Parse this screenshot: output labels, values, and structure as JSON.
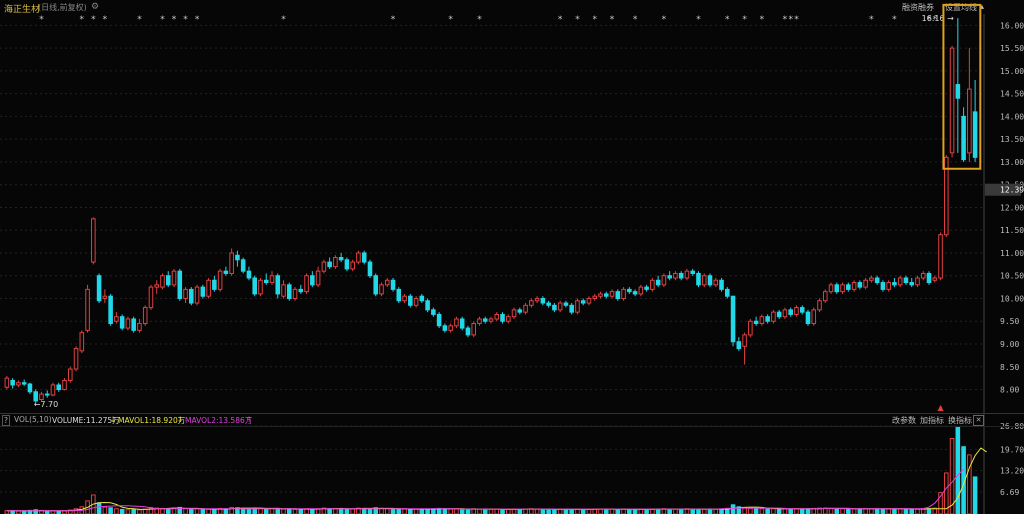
{
  "header": {
    "stock_name": "海正生材",
    "period": "(日线,前复权)",
    "gear": "⚙",
    "margin_btn": "融资融券",
    "ma_btn": "设置均线"
  },
  "vol_header": {
    "indicator": "VOL(5,10)",
    "volume": "VOLUME:11.275万",
    "mavol1": "MAVOL1:18.920万",
    "mavol2": "MAVOL2:13.586万",
    "btn1": "改参数",
    "btn2": "加指标",
    "btn3": "换指标",
    "close": "✕",
    "help": "?"
  },
  "colors": {
    "up": "#e04040",
    "down": "#20d8e8",
    "mavol1": "#e8e840",
    "mavol2": "#e040e0",
    "highlight": "#e0a020",
    "price_tag_bg": "#3a3a3a"
  },
  "chart_data": {
    "type": "candlestick",
    "price_axis": {
      "min": 7.55,
      "max": 16.25,
      "ticks": [
        "8.00",
        "8.50",
        "9.00",
        "9.50",
        "10.00",
        "10.50",
        "11.00",
        "11.50",
        "12.00",
        "12.50",
        "13.00",
        "13.50",
        "14.00",
        "14.50",
        "15.00",
        "15.50",
        "16.00"
      ]
    },
    "current_price": "12.39",
    "low_label": "7.70",
    "high_label": "16.16",
    "volume_axis": {
      "max": 26.8,
      "ticks": [
        "26.80",
        "19.70",
        "13.20",
        "6.69"
      ]
    },
    "candles": [
      [
        8.05,
        8.25,
        8.3,
        8.0
      ],
      [
        8.2,
        8.1,
        8.25,
        8.02
      ],
      [
        8.1,
        8.15,
        8.2,
        8.05
      ],
      [
        8.15,
        8.12,
        8.22,
        8.08
      ],
      [
        8.12,
        7.95,
        8.15,
        7.9
      ],
      [
        7.95,
        7.75,
        8.0,
        7.7
      ],
      [
        7.78,
        7.9,
        7.95,
        7.75
      ],
      [
        7.9,
        7.88,
        7.98,
        7.82
      ],
      [
        7.88,
        8.1,
        8.15,
        7.85
      ],
      [
        8.1,
        8.0,
        8.15,
        7.95
      ],
      [
        8.0,
        8.2,
        8.25,
        7.98
      ],
      [
        8.2,
        8.45,
        8.5,
        8.15
      ],
      [
        8.45,
        8.9,
        8.95,
        8.4
      ],
      [
        8.85,
        9.25,
        9.3,
        8.8
      ],
      [
        9.3,
        10.2,
        10.3,
        9.25
      ],
      [
        10.8,
        11.75,
        11.78,
        10.75
      ],
      [
        10.5,
        9.95,
        10.55,
        9.9
      ],
      [
        10.0,
        10.05,
        10.2,
        9.9
      ],
      [
        10.05,
        9.45,
        10.1,
        9.4
      ],
      [
        9.5,
        9.6,
        9.7,
        9.45
      ],
      [
        9.6,
        9.35,
        9.65,
        9.3
      ],
      [
        9.35,
        9.55,
        9.6,
        9.3
      ],
      [
        9.55,
        9.3,
        9.6,
        9.25
      ],
      [
        9.3,
        9.45,
        9.55,
        9.25
      ],
      [
        9.45,
        9.8,
        9.85,
        9.4
      ],
      [
        9.8,
        10.25,
        10.3,
        9.75
      ],
      [
        10.25,
        10.3,
        10.4,
        10.1
      ],
      [
        10.25,
        10.5,
        10.55,
        10.2
      ],
      [
        10.5,
        10.3,
        10.6,
        10.25
      ],
      [
        10.3,
        10.6,
        10.65,
        10.25
      ],
      [
        10.6,
        10.0,
        10.65,
        9.95
      ],
      [
        10.0,
        10.2,
        10.25,
        9.9
      ],
      [
        10.2,
        9.9,
        10.25,
        9.85
      ],
      [
        9.9,
        10.25,
        10.3,
        9.85
      ],
      [
        10.25,
        10.05,
        10.3,
        10.0
      ],
      [
        10.05,
        10.4,
        10.45,
        10.0
      ],
      [
        10.4,
        10.2,
        10.5,
        10.15
      ],
      [
        10.2,
        10.6,
        10.65,
        10.15
      ],
      [
        10.6,
        10.55,
        10.7,
        10.5
      ],
      [
        10.55,
        11.0,
        11.1,
        10.5
      ],
      [
        10.95,
        10.85,
        11.05,
        10.7
      ],
      [
        10.85,
        10.6,
        10.9,
        10.55
      ],
      [
        10.6,
        10.45,
        10.7,
        10.4
      ],
      [
        10.45,
        10.1,
        10.5,
        10.05
      ],
      [
        10.1,
        10.4,
        10.45,
        10.05
      ],
      [
        10.4,
        10.35,
        10.55,
        10.3
      ],
      [
        10.35,
        10.5,
        10.6,
        10.3
      ],
      [
        10.5,
        10.1,
        10.55,
        10.0
      ],
      [
        10.05,
        10.3,
        10.4,
        10.0
      ],
      [
        10.3,
        10.0,
        10.35,
        9.95
      ],
      [
        10.0,
        10.2,
        10.25,
        9.95
      ],
      [
        10.2,
        10.15,
        10.3,
        10.1
      ],
      [
        10.15,
        10.5,
        10.55,
        10.1
      ],
      [
        10.5,
        10.3,
        10.6,
        10.25
      ],
      [
        10.3,
        10.6,
        10.7,
        10.25
      ],
      [
        10.6,
        10.8,
        10.85,
        10.55
      ],
      [
        10.8,
        10.7,
        10.9,
        10.65
      ],
      [
        10.7,
        10.9,
        10.95,
        10.65
      ],
      [
        10.9,
        10.85,
        11.0,
        10.8
      ],
      [
        10.85,
        10.65,
        10.9,
        10.6
      ],
      [
        10.65,
        10.8,
        10.85,
        10.6
      ],
      [
        10.8,
        11.0,
        11.05,
        10.75
      ],
      [
        11.0,
        10.8,
        11.05,
        10.75
      ],
      [
        10.8,
        10.5,
        10.85,
        10.45
      ],
      [
        10.5,
        10.1,
        10.55,
        10.05
      ],
      [
        10.1,
        10.3,
        10.35,
        10.05
      ],
      [
        10.3,
        10.4,
        10.45,
        10.25
      ],
      [
        10.4,
        10.2,
        10.45,
        10.15
      ],
      [
        10.2,
        9.95,
        10.25,
        9.9
      ],
      [
        9.95,
        10.05,
        10.1,
        9.9
      ],
      [
        10.05,
        9.85,
        10.1,
        9.8
      ],
      [
        9.85,
        10.0,
        10.05,
        9.8
      ],
      [
        10.05,
        9.95,
        10.1,
        9.9
      ],
      [
        9.95,
        9.75,
        10.0,
        9.7
      ],
      [
        9.75,
        9.65,
        9.8,
        9.6
      ],
      [
        9.65,
        9.4,
        9.7,
        9.35
      ],
      [
        9.4,
        9.3,
        9.45,
        9.25
      ],
      [
        9.3,
        9.4,
        9.45,
        9.25
      ],
      [
        9.4,
        9.55,
        9.6,
        9.35
      ],
      [
        9.55,
        9.35,
        9.6,
        9.3
      ],
      [
        9.35,
        9.2,
        9.4,
        9.15
      ],
      [
        9.2,
        9.45,
        9.5,
        9.15
      ],
      [
        9.45,
        9.55,
        9.6,
        9.4
      ],
      [
        9.55,
        9.5,
        9.6,
        9.45
      ],
      [
        9.5,
        9.55,
        9.6,
        9.45
      ],
      [
        9.55,
        9.65,
        9.7,
        9.5
      ],
      [
        9.65,
        9.5,
        9.7,
        9.45
      ],
      [
        9.5,
        9.6,
        9.65,
        9.45
      ],
      [
        9.6,
        9.75,
        9.8,
        9.55
      ],
      [
        9.75,
        9.7,
        9.8,
        9.65
      ],
      [
        9.7,
        9.85,
        9.9,
        9.65
      ],
      [
        9.85,
        9.95,
        10.0,
        9.8
      ],
      [
        9.95,
        10.0,
        10.05,
        9.9
      ],
      [
        10.0,
        9.9,
        10.05,
        9.85
      ],
      [
        9.9,
        9.85,
        9.95,
        9.8
      ],
      [
        9.85,
        9.75,
        9.9,
        9.7
      ],
      [
        9.75,
        9.9,
        9.95,
        9.7
      ],
      [
        9.9,
        9.85,
        9.95,
        9.8
      ],
      [
        9.85,
        9.7,
        9.9,
        9.65
      ],
      [
        9.7,
        9.95,
        10.0,
        9.65
      ],
      [
        9.95,
        9.9,
        10.0,
        9.85
      ],
      [
        9.9,
        10.0,
        10.05,
        9.85
      ],
      [
        10.0,
        10.05,
        10.1,
        9.95
      ],
      [
        10.05,
        10.1,
        10.15,
        10.0
      ],
      [
        10.1,
        10.05,
        10.15,
        10.0
      ],
      [
        10.05,
        10.15,
        10.2,
        10.0
      ],
      [
        10.15,
        10.0,
        10.2,
        9.95
      ],
      [
        10.0,
        10.2,
        10.25,
        9.95
      ],
      [
        10.2,
        10.15,
        10.25,
        10.1
      ],
      [
        10.15,
        10.1,
        10.2,
        10.05
      ],
      [
        10.1,
        10.25,
        10.3,
        10.05
      ],
      [
        10.25,
        10.2,
        10.3,
        10.15
      ],
      [
        10.2,
        10.4,
        10.45,
        10.15
      ],
      [
        10.4,
        10.3,
        10.5,
        10.25
      ],
      [
        10.3,
        10.5,
        10.55,
        10.25
      ],
      [
        10.5,
        10.45,
        10.6,
        10.4
      ],
      [
        10.45,
        10.55,
        10.6,
        10.4
      ],
      [
        10.55,
        10.45,
        10.6,
        10.4
      ],
      [
        10.45,
        10.6,
        10.65,
        10.4
      ],
      [
        10.6,
        10.55,
        10.65,
        10.5
      ],
      [
        10.55,
        10.3,
        10.6,
        10.25
      ],
      [
        10.3,
        10.5,
        10.55,
        10.25
      ],
      [
        10.5,
        10.3,
        10.55,
        10.25
      ],
      [
        10.3,
        10.4,
        10.45,
        10.25
      ],
      [
        10.4,
        10.2,
        10.45,
        10.15
      ],
      [
        10.2,
        10.05,
        10.25,
        10.0
      ],
      [
        10.05,
        9.05,
        10.05,
        8.95
      ],
      [
        9.05,
        8.9,
        9.15,
        8.85
      ],
      [
        8.95,
        9.2,
        9.25,
        8.55
      ],
      [
        9.2,
        9.5,
        9.55,
        9.15
      ],
      [
        9.5,
        9.45,
        9.6,
        9.4
      ],
      [
        9.45,
        9.6,
        9.65,
        9.4
      ],
      [
        9.6,
        9.5,
        9.65,
        9.45
      ],
      [
        9.5,
        9.7,
        9.75,
        9.45
      ],
      [
        9.7,
        9.6,
        9.75,
        9.55
      ],
      [
        9.6,
        9.75,
        9.8,
        9.55
      ],
      [
        9.75,
        9.65,
        9.8,
        9.6
      ],
      [
        9.65,
        9.8,
        9.85,
        9.6
      ],
      [
        9.8,
        9.7,
        9.85,
        9.65
      ],
      [
        9.7,
        9.45,
        9.75,
        9.4
      ],
      [
        9.45,
        9.75,
        9.8,
        9.4
      ],
      [
        9.75,
        9.95,
        10.0,
        9.7
      ],
      [
        9.95,
        10.15,
        10.2,
        9.9
      ],
      [
        10.15,
        10.3,
        10.35,
        10.1
      ],
      [
        10.3,
        10.15,
        10.35,
        10.1
      ],
      [
        10.15,
        10.3,
        10.35,
        10.1
      ],
      [
        10.3,
        10.2,
        10.35,
        10.15
      ],
      [
        10.2,
        10.35,
        10.4,
        10.15
      ],
      [
        10.35,
        10.25,
        10.4,
        10.2
      ],
      [
        10.25,
        10.4,
        10.45,
        10.2
      ],
      [
        10.4,
        10.45,
        10.5,
        10.35
      ],
      [
        10.45,
        10.35,
        10.5,
        10.3
      ],
      [
        10.35,
        10.2,
        10.4,
        10.15
      ],
      [
        10.2,
        10.35,
        10.4,
        10.15
      ],
      [
        10.35,
        10.3,
        10.45,
        10.25
      ],
      [
        10.3,
        10.45,
        10.5,
        10.25
      ],
      [
        10.45,
        10.35,
        10.5,
        10.3
      ],
      [
        10.35,
        10.3,
        10.45,
        10.25
      ],
      [
        10.3,
        10.45,
        10.5,
        10.25
      ],
      [
        10.45,
        10.55,
        10.6,
        10.4
      ],
      [
        10.55,
        10.35,
        10.6,
        10.3
      ],
      [
        10.4,
        10.45,
        10.5,
        10.35
      ],
      [
        10.45,
        11.4,
        11.45,
        10.4
      ],
      [
        11.4,
        13.1,
        13.15,
        11.35
      ],
      [
        13.2,
        15.5,
        15.55,
        13.1
      ],
      [
        14.7,
        14.4,
        16.16,
        13.2
      ],
      [
        14.0,
        13.05,
        14.2,
        13.0
      ],
      [
        13.2,
        14.6,
        15.5,
        13.0
      ],
      [
        14.1,
        13.1,
        14.8,
        13.0
      ]
    ],
    "volumes": [
      1,
      1,
      0.9,
      0.9,
      1.1,
      1.3,
      1.1,
      0.9,
      1,
      0.9,
      1,
      1.2,
      1.6,
      2.2,
      4.0,
      5.8,
      3.4,
      2.1,
      1.9,
      1.6,
      1.4,
      1.3,
      1.5,
      1.3,
      1.5,
      2.0,
      1.8,
      1.7,
      1.6,
      1.8,
      2.0,
      1.6,
      1.5,
      1.6,
      1.4,
      1.5,
      1.4,
      1.7,
      1.6,
      2.0,
      1.9,
      1.7,
      1.6,
      1.8,
      1.7,
      1.5,
      1.6,
      1.7,
      1.5,
      1.6,
      1.4,
      1.3,
      1.6,
      1.5,
      1.6,
      1.8,
      1.6,
      1.7,
      1.6,
      1.5,
      1.6,
      1.8,
      1.7,
      1.6,
      1.9,
      1.7,
      1.6,
      1.5,
      1.6,
      1.5,
      1.4,
      1.5,
      1.4,
      1.5,
      1.6,
      1.7,
      1.6,
      1.5,
      1.6,
      1.4,
      1.5,
      1.6,
      1.5,
      1.4,
      1.4,
      1.5,
      1.4,
      1.4,
      1.5,
      1.4,
      1.5,
      1.6,
      1.5,
      1.4,
      1.4,
      1.4,
      1.5,
      1.4,
      1.4,
      1.5,
      1.4,
      1.4,
      1.5,
      1.5,
      1.4,
      1.5,
      1.4,
      1.5,
      1.4,
      1.4,
      1.5,
      1.4,
      1.5,
      1.5,
      1.6,
      1.5,
      1.5,
      1.5,
      1.6,
      1.5,
      1.5,
      1.4,
      1.5,
      1.4,
      1.5,
      1.7,
      2.8,
      2.2,
      2.0,
      1.7,
      1.6,
      1.6,
      1.5,
      1.6,
      1.5,
      1.6,
      1.5,
      1.6,
      1.5,
      1.6,
      1.7,
      1.8,
      1.8,
      1.7,
      1.6,
      1.6,
      1.5,
      1.6,
      1.5,
      1.6,
      1.6,
      1.5,
      1.5,
      1.6,
      1.5,
      1.6,
      1.5,
      1.5,
      1.6,
      1.7,
      1.6,
      1.8,
      6.5,
      12.5,
      23.0,
      26.6,
      20.5,
      18.0,
      11.3
    ],
    "mavol1": [
      1,
      1,
      1,
      1,
      1,
      1,
      1,
      1,
      1,
      1,
      1,
      1.05,
      1.2,
      1.4,
      2.0,
      3.0,
      3.4,
      3.5,
      3.4,
      2.9,
      2.1,
      1.7,
      1.6,
      1.4,
      1.4,
      1.5,
      1.6,
      1.6,
      1.7,
      1.8,
      1.8,
      1.7,
      1.7,
      1.7,
      1.6,
      1.5,
      1.5,
      1.5,
      1.5,
      1.6,
      1.7,
      1.8,
      1.8,
      1.8,
      1.8,
      1.7,
      1.7,
      1.7,
      1.6,
      1.6,
      1.6,
      1.5,
      1.5,
      1.5,
      1.5,
      1.6,
      1.6,
      1.6,
      1.7,
      1.6,
      1.6,
      1.6,
      1.7,
      1.7,
      1.7,
      1.7,
      1.7,
      1.7,
      1.6,
      1.6,
      1.5,
      1.5,
      1.5,
      1.5,
      1.5,
      1.5,
      1.6,
      1.6,
      1.6,
      1.6,
      1.5,
      1.5,
      1.5,
      1.5,
      1.5,
      1.5,
      1.4,
      1.4,
      1.4,
      1.4,
      1.5,
      1.5,
      1.5,
      1.5,
      1.5,
      1.4,
      1.4,
      1.4,
      1.4,
      1.4,
      1.4,
      1.4,
      1.4,
      1.5,
      1.5,
      1.5,
      1.4,
      1.5,
      1.4,
      1.4,
      1.4,
      1.4,
      1.4,
      1.5,
      1.5,
      1.5,
      1.5,
      1.5,
      1.5,
      1.5,
      1.5,
      1.5,
      1.5,
      1.5,
      1.5,
      1.5,
      1.7,
      1.9,
      2.0,
      2.1,
      2.1,
      2.0,
      1.8,
      1.7,
      1.6,
      1.6,
      1.6,
      1.6,
      1.6,
      1.6,
      1.6,
      1.6,
      1.7,
      1.7,
      1.7,
      1.7,
      1.7,
      1.6,
      1.6,
      1.6,
      1.6,
      1.6,
      1.6,
      1.6,
      1.6,
      1.6,
      1.6,
      1.6,
      1.5,
      1.5,
      1.6,
      1.6,
      1.6,
      1.6,
      2.7,
      4.9,
      9.1,
      14.1,
      17.8,
      20.1,
      18.9
    ],
    "mavol2": [
      1,
      1,
      1,
      1,
      1,
      1,
      1,
      1,
      1,
      1,
      1,
      1,
      1.05,
      1.1,
      1.4,
      1.9,
      2.2,
      2.3,
      2.4,
      2.5,
      2.5,
      2.5,
      2.4,
      2.3,
      2.2,
      1.8,
      1.6,
      1.6,
      1.6,
      1.6,
      1.7,
      1.7,
      1.6,
      1.6,
      1.6,
      1.6,
      1.6,
      1.6,
      1.6,
      1.6,
      1.6,
      1.6,
      1.6,
      1.6,
      1.6,
      1.6,
      1.6,
      1.6,
      1.6,
      1.6,
      1.6,
      1.6,
      1.6,
      1.6,
      1.6,
      1.6,
      1.6,
      1.6,
      1.6,
      1.6,
      1.6,
      1.6,
      1.6,
      1.6,
      1.6,
      1.6,
      1.6,
      1.6,
      1.6,
      1.6,
      1.6,
      1.6,
      1.6,
      1.6,
      1.6,
      1.6,
      1.6,
      1.6,
      1.6,
      1.5,
      1.5,
      1.5,
      1.5,
      1.5,
      1.5,
      1.5,
      1.5,
      1.5,
      1.5,
      1.5,
      1.5,
      1.5,
      1.5,
      1.5,
      1.5,
      1.5,
      1.5,
      1.5,
      1.5,
      1.5,
      1.5,
      1.5,
      1.5,
      1.5,
      1.5,
      1.5,
      1.5,
      1.5,
      1.5,
      1.5,
      1.5,
      1.5,
      1.5,
      1.5,
      1.5,
      1.5,
      1.5,
      1.5,
      1.5,
      1.5,
      1.5,
      1.5,
      1.5,
      1.5,
      1.6,
      1.7,
      1.7,
      1.8,
      1.8,
      1.8,
      1.8,
      1.8,
      1.8,
      1.8,
      1.8,
      1.7,
      1.6,
      1.6,
      1.6,
      1.6,
      1.6,
      1.6,
      1.7,
      1.7,
      1.7,
      1.7,
      1.7,
      1.6,
      1.6,
      1.6,
      1.6,
      1.6,
      1.6,
      1.6,
      1.6,
      1.6,
      1.6,
      1.6,
      1.6,
      1.6,
      2.1,
      3.3,
      5.4,
      7.9,
      9.7,
      11.8,
      13.6
    ],
    "event_markers": [
      6,
      13,
      15,
      17,
      23,
      27,
      29,
      31,
      33,
      48,
      67,
      77,
      82,
      96,
      99,
      102,
      105,
      109,
      114,
      120,
      125,
      128,
      131,
      135,
      136,
      137,
      150,
      154,
      160,
      161
    ]
  }
}
